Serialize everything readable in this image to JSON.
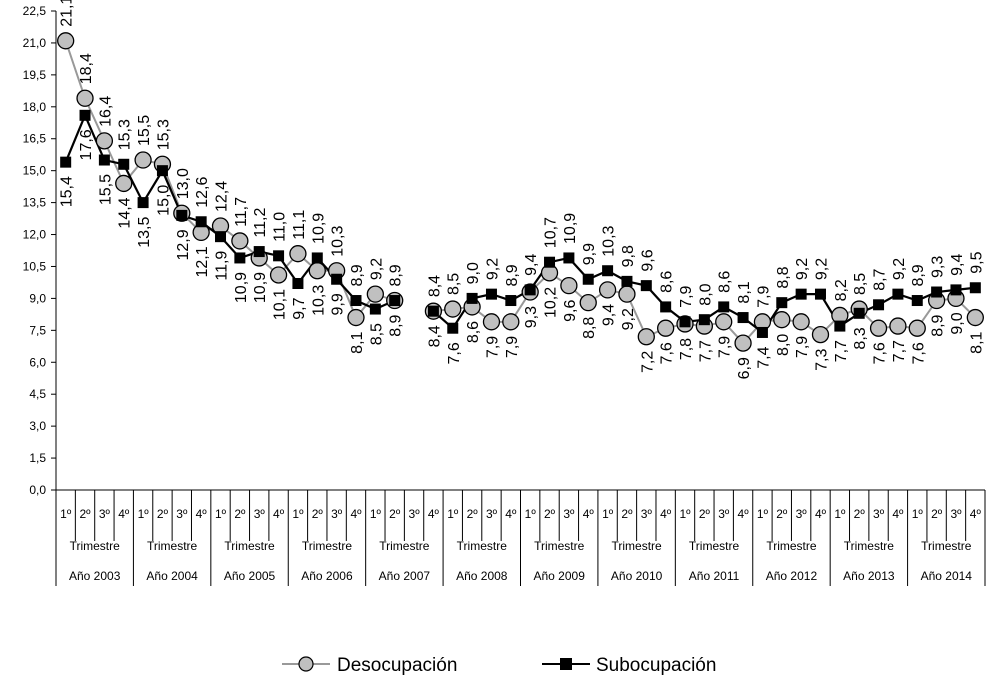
{
  "chart_data": {
    "type": "line",
    "title": "",
    "xlabel": "",
    "ylabel": "",
    "ylim": [
      0,
      22.5
    ],
    "yticks": [
      "0,0",
      "1,5",
      "3,0",
      "4,5",
      "6,0",
      "7,5",
      "9,0",
      "10,5",
      "12,0",
      "13,5",
      "15,0",
      "16,5",
      "18,0",
      "19,5",
      "21,0",
      "22,5"
    ],
    "quarter_labels": [
      "1º",
      "2º",
      "3º",
      "4º"
    ],
    "trimestre_label": "Trimestre",
    "years": [
      "Año 2003",
      "Año 2004",
      "Año 2005",
      "Año 2006",
      "Año 2007",
      "Año 2008",
      "Año 2009",
      "Año 2010",
      "Año 2011",
      "Año 2012",
      "Año 2013",
      "Año 2014"
    ],
    "grid": false,
    "legend_position": "bottom",
    "series": [
      {
        "name": "Desocupación",
        "color": "#999999",
        "marker": "circle",
        "values": [
          21.1,
          18.4,
          16.4,
          14.4,
          15.5,
          15.3,
          13.0,
          12.1,
          12.4,
          11.7,
          10.9,
          10.1,
          11.1,
          10.3,
          10.3,
          8.1,
          9.2,
          8.9,
          null,
          8.4,
          8.5,
          8.6,
          7.9,
          7.9,
          9.3,
          10.2,
          9.6,
          8.8,
          9.4,
          9.2,
          7.2,
          7.6,
          7.8,
          7.7,
          7.9,
          6.9,
          7.9,
          8.0,
          7.9,
          7.3,
          8.2,
          8.5,
          7.6,
          7.7,
          7.6,
          8.9,
          9.0,
          8.1
        ]
      },
      {
        "name": "Subocupación",
        "color": "#000000",
        "marker": "square",
        "values": [
          15.4,
          17.6,
          15.5,
          15.3,
          13.5,
          15.0,
          12.9,
          12.6,
          11.9,
          10.9,
          11.2,
          11.0,
          9.7,
          10.9,
          9.9,
          8.9,
          8.5,
          8.9,
          null,
          8.4,
          7.6,
          9.0,
          9.2,
          8.9,
          9.4,
          10.7,
          10.9,
          9.9,
          10.3,
          9.8,
          9.6,
          8.6,
          7.9,
          8.0,
          8.6,
          8.1,
          7.4,
          8.8,
          9.2,
          9.2,
          7.7,
          8.3,
          8.7,
          9.2,
          8.9,
          9.3,
          9.4,
          9.5
        ]
      }
    ]
  }
}
